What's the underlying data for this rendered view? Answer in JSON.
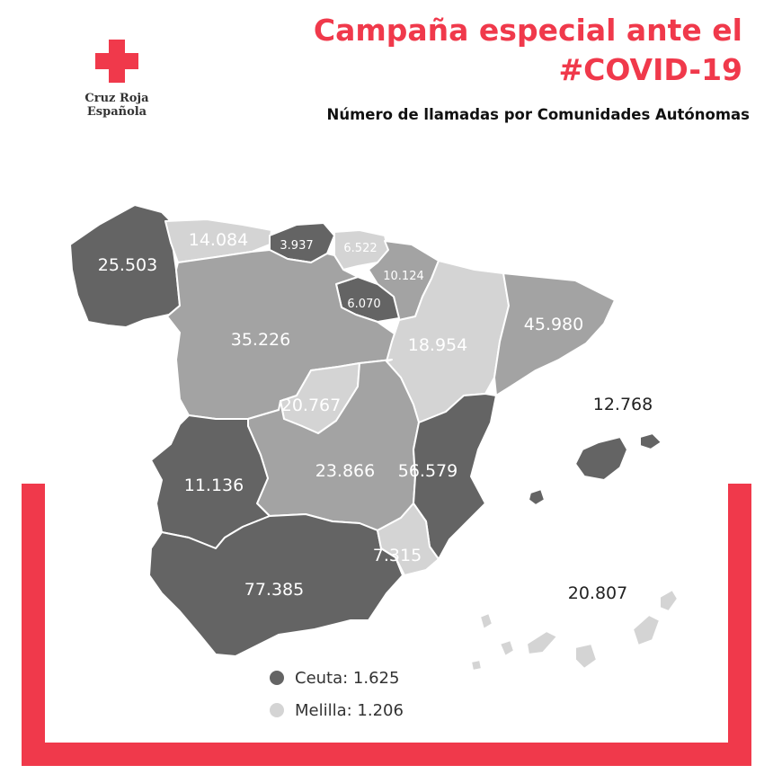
{
  "header": {
    "logo_text": "Cruz Roja Española",
    "title_line1": "Campaña especial ante el",
    "title_line2": "#COVID-19",
    "subtitle": "Número de llamadas por Comunidades Autónomas"
  },
  "colors": {
    "brand_red": "#f0394b",
    "dark": "#646464",
    "medium": "#a3a3a3",
    "light": "#d4d4d4"
  },
  "regions": {
    "galicia": "25.503",
    "asturias": "14.084",
    "cantabria": "3.937",
    "pais_vasco": "6.522",
    "navarra": "10.124",
    "la_rioja": "6.070",
    "castilla_leon": "35.226",
    "aragon": "18.954",
    "cataluna": "45.980",
    "madrid": "20.767",
    "castilla_la_mancha": "23.866",
    "comunidad_valenciana": "56.579",
    "extremadura": "11.136",
    "andalucia": "77.385",
    "murcia": "7.315",
    "baleares": "12.768",
    "canarias": "20.807"
  },
  "legend": {
    "ceuta": "Ceuta: 1.625",
    "melilla": "Melilla: 1.206"
  }
}
